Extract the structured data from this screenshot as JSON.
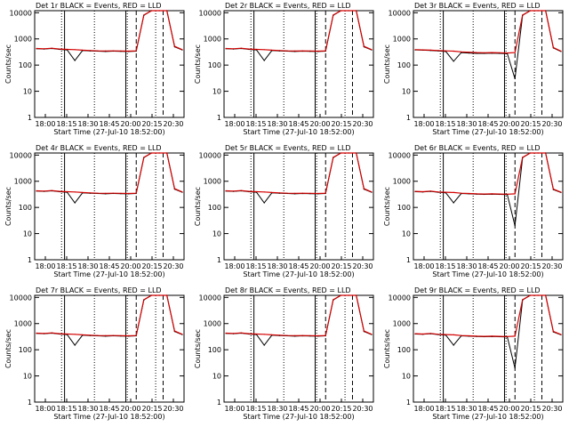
{
  "figure": {
    "xlabel": "Start Time (27-Jul-10 18:52:00)",
    "ylabel": "Counts/sec",
    "x_ticks": [
      "18:00",
      "18:15",
      "18:30",
      "18:45",
      "20:00",
      "20:15",
      "20:30"
    ],
    "y_ticks": [
      "10000",
      "1000",
      "100",
      "10",
      "1"
    ]
  },
  "chart_data": [
    {
      "type": "line",
      "title": "Det 1r BLACK = Events, RED = LLD",
      "xlabel": "Start Time (27-Jul-10 18:52:00)",
      "ylabel": "Counts/sec",
      "yscale": "log",
      "ylim": [
        1,
        12000
      ],
      "x": [
        0,
        1,
        2,
        3,
        4,
        5,
        6,
        7,
        8,
        9,
        10,
        11,
        12,
        13,
        14,
        15,
        16,
        17,
        18,
        19
      ],
      "series": [
        {
          "name": "Events",
          "color": "#000000",
          "values": [
            420,
            410,
            430,
            400,
            380,
            150,
            360,
            350,
            340,
            330,
            340,
            335,
            330,
            340,
            8000,
            12000,
            12000,
            12000,
            500,
            380
          ]
        },
        {
          "name": "LLD",
          "color": "#d40000",
          "values": [
            430,
            420,
            440,
            410,
            400,
            390,
            370,
            360,
            350,
            345,
            350,
            345,
            340,
            350,
            8200,
            12000,
            12000,
            12000,
            520,
            390
          ]
        }
      ]
    },
    {
      "type": "line",
      "title": "Det 2r BLACK = Events, RED = LLD",
      "xlabel": "Start Time (27-Jul-10 18:52:00)",
      "ylabel": "Counts/sec",
      "yscale": "log",
      "ylim": [
        1,
        12000
      ],
      "x": [
        0,
        1,
        2,
        3,
        4,
        5,
        6,
        7,
        8,
        9,
        10,
        11,
        12,
        13,
        14,
        15,
        16,
        17,
        18,
        19
      ],
      "series": [
        {
          "name": "Events",
          "color": "#000000",
          "values": [
            420,
            410,
            430,
            400,
            380,
            150,
            360,
            350,
            340,
            330,
            340,
            335,
            330,
            340,
            8000,
            12000,
            12000,
            12000,
            500,
            380
          ]
        },
        {
          "name": "LLD",
          "color": "#d40000",
          "values": [
            430,
            420,
            440,
            410,
            400,
            390,
            370,
            360,
            350,
            345,
            350,
            345,
            340,
            350,
            8200,
            12000,
            12000,
            12000,
            520,
            390
          ]
        }
      ]
    },
    {
      "type": "line",
      "title": "Det 3r BLACK = Events, RED = LLD",
      "xlabel": "Start Time (27-Jul-10 18:52:00)",
      "ylabel": "Counts/sec",
      "yscale": "log",
      "ylim": [
        1,
        12000
      ],
      "x": [
        0,
        1,
        2,
        3,
        4,
        5,
        6,
        7,
        8,
        9,
        10,
        11,
        12,
        13,
        14,
        15,
        16,
        17,
        18,
        19
      ],
      "series": [
        {
          "name": "Events",
          "color": "#000000",
          "values": [
            380,
            370,
            360,
            350,
            330,
            140,
            300,
            290,
            280,
            280,
            285,
            280,
            275,
            30,
            8000,
            12000,
            12000,
            12000,
            450,
            330
          ]
        },
        {
          "name": "LLD",
          "color": "#d40000",
          "values": [
            390,
            380,
            370,
            360,
            350,
            340,
            320,
            310,
            300,
            295,
            300,
            295,
            290,
            300,
            8200,
            12000,
            12000,
            12000,
            470,
            340
          ]
        }
      ]
    },
    {
      "type": "line",
      "title": "Det 4r BLACK = Events, RED = LLD",
      "xlabel": "Start Time (27-Jul-10 18:52:00)",
      "ylabel": "Counts/sec",
      "yscale": "log",
      "ylim": [
        1,
        12000
      ],
      "x": [
        0,
        1,
        2,
        3,
        4,
        5,
        6,
        7,
        8,
        9,
        10,
        11,
        12,
        13,
        14,
        15,
        16,
        17,
        18,
        19
      ],
      "series": [
        {
          "name": "Events",
          "color": "#000000",
          "values": [
            420,
            410,
            430,
            400,
            380,
            150,
            360,
            350,
            340,
            330,
            340,
            335,
            330,
            340,
            8000,
            12000,
            12000,
            12000,
            500,
            380
          ]
        },
        {
          "name": "LLD",
          "color": "#d40000",
          "values": [
            430,
            420,
            440,
            410,
            400,
            390,
            370,
            360,
            350,
            345,
            350,
            345,
            340,
            350,
            8200,
            12000,
            12000,
            12000,
            520,
            390
          ]
        }
      ]
    },
    {
      "type": "line",
      "title": "Det 5r BLACK = Events, RED = LLD",
      "xlabel": "Start Time (27-Jul-10 18:52:00)",
      "ylabel": "Counts/sec",
      "yscale": "log",
      "ylim": [
        1,
        12000
      ],
      "x": [
        0,
        1,
        2,
        3,
        4,
        5,
        6,
        7,
        8,
        9,
        10,
        11,
        12,
        13,
        14,
        15,
        16,
        17,
        18,
        19
      ],
      "series": [
        {
          "name": "Events",
          "color": "#000000",
          "values": [
            420,
            410,
            430,
            400,
            380,
            150,
            360,
            350,
            340,
            330,
            340,
            335,
            330,
            340,
            8000,
            12000,
            12000,
            12000,
            500,
            380
          ]
        },
        {
          "name": "LLD",
          "color": "#d40000",
          "values": [
            430,
            420,
            440,
            410,
            400,
            390,
            370,
            360,
            350,
            345,
            350,
            345,
            340,
            350,
            8200,
            12000,
            12000,
            12000,
            520,
            390
          ]
        }
      ]
    },
    {
      "type": "line",
      "title": "Det 6r BLACK = Events, RED = LLD",
      "xlabel": "Start Time (27-Jul-10 18:52:00)",
      "ylabel": "Counts/sec",
      "yscale": "log",
      "ylim": [
        1,
        12000
      ],
      "x": [
        0,
        1,
        2,
        3,
        4,
        5,
        6,
        7,
        8,
        9,
        10,
        11,
        12,
        13,
        14,
        15,
        16,
        17,
        18,
        19
      ],
      "series": [
        {
          "name": "Events",
          "color": "#000000",
          "values": [
            400,
            390,
            410,
            380,
            360,
            150,
            340,
            330,
            320,
            315,
            320,
            315,
            310,
            20,
            8000,
            12000,
            12000,
            12000,
            480,
            370
          ]
        },
        {
          "name": "LLD",
          "color": "#d40000",
          "values": [
            410,
            400,
            420,
            390,
            380,
            370,
            350,
            340,
            330,
            325,
            330,
            325,
            320,
            330,
            8200,
            12000,
            12000,
            12000,
            500,
            380
          ]
        }
      ]
    },
    {
      "type": "line",
      "title": "Det 7r BLACK = Events, RED = LLD",
      "xlabel": "Start Time (27-Jul-10 18:52:00)",
      "ylabel": "Counts/sec",
      "yscale": "log",
      "ylim": [
        1,
        12000
      ],
      "x": [
        0,
        1,
        2,
        3,
        4,
        5,
        6,
        7,
        8,
        9,
        10,
        11,
        12,
        13,
        14,
        15,
        16,
        17,
        18,
        19
      ],
      "series": [
        {
          "name": "Events",
          "color": "#000000",
          "values": [
            420,
            410,
            430,
            400,
            380,
            150,
            360,
            350,
            340,
            330,
            340,
            335,
            330,
            340,
            8000,
            12000,
            12000,
            12000,
            500,
            380
          ]
        },
        {
          "name": "LLD",
          "color": "#d40000",
          "values": [
            430,
            420,
            440,
            410,
            400,
            390,
            370,
            360,
            350,
            345,
            350,
            345,
            340,
            350,
            8200,
            12000,
            12000,
            12000,
            520,
            390
          ]
        }
      ]
    },
    {
      "type": "line",
      "title": "Det 8r BLACK = Events, RED = LLD",
      "xlabel": "Start Time (27-Jul-10 18:52:00)",
      "ylabel": "Counts/sec",
      "yscale": "log",
      "ylim": [
        1,
        12000
      ],
      "x": [
        0,
        1,
        2,
        3,
        4,
        5,
        6,
        7,
        8,
        9,
        10,
        11,
        12,
        13,
        14,
        15,
        16,
        17,
        18,
        19
      ],
      "series": [
        {
          "name": "Events",
          "color": "#000000",
          "values": [
            420,
            410,
            430,
            400,
            380,
            150,
            360,
            350,
            340,
            330,
            340,
            335,
            330,
            340,
            8000,
            12000,
            12000,
            12000,
            500,
            380
          ]
        },
        {
          "name": "LLD",
          "color": "#d40000",
          "values": [
            430,
            420,
            440,
            410,
            400,
            390,
            370,
            360,
            350,
            345,
            350,
            345,
            340,
            350,
            8200,
            12000,
            12000,
            12000,
            520,
            390
          ]
        }
      ]
    },
    {
      "type": "line",
      "title": "Det 9r BLACK = Events, RED = LLD",
      "xlabel": "Start Time (27-Jul-10 18:52:00)",
      "ylabel": "Counts/sec",
      "yscale": "log",
      "ylim": [
        1,
        12000
      ],
      "x": [
        0,
        1,
        2,
        3,
        4,
        5,
        6,
        7,
        8,
        9,
        10,
        11,
        12,
        13,
        14,
        15,
        16,
        17,
        18,
        19
      ],
      "series": [
        {
          "name": "Events",
          "color": "#000000",
          "values": [
            400,
            390,
            410,
            380,
            360,
            150,
            340,
            330,
            320,
            315,
            320,
            315,
            310,
            20,
            8000,
            12000,
            12000,
            12000,
            480,
            370
          ]
        },
        {
          "name": "LLD",
          "color": "#d40000",
          "values": [
            410,
            400,
            420,
            390,
            380,
            370,
            350,
            340,
            330,
            325,
            330,
            325,
            320,
            330,
            8200,
            12000,
            12000,
            12000,
            500,
            380
          ]
        }
      ]
    }
  ]
}
